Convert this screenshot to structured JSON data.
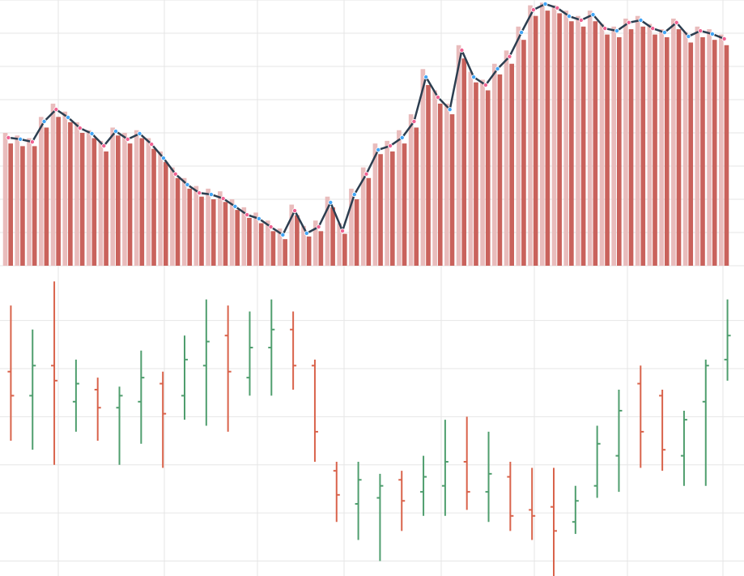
{
  "chart_data": [
    {
      "type": "combo",
      "ylim": [
        0,
        100
      ],
      "yticks": [
        0,
        12.5,
        25,
        37.5,
        50,
        62.5,
        75,
        87.5,
        100
      ],
      "grid": true,
      "marker_colors": [
        "#f06292",
        "#42a5f5"
      ],
      "series": [
        {
          "type": "bar",
          "color": "#e9bcbc",
          "values": [
            50,
            49,
            48,
            56,
            61,
            58,
            54,
            51,
            47,
            52,
            50,
            51,
            48,
            43,
            37,
            33,
            30,
            29,
            28,
            25,
            22,
            20,
            17,
            14,
            23,
            15,
            17,
            26,
            16,
            29,
            37,
            46,
            47,
            51,
            57,
            74,
            66,
            61,
            83,
            73,
            70,
            76,
            81,
            90,
            98,
            99,
            98,
            96,
            94,
            96,
            91,
            90,
            93,
            94,
            91,
            89,
            93,
            88,
            90,
            89,
            87
          ]
        },
        {
          "type": "bar",
          "color": "#c9625c",
          "values": [
            46,
            45,
            45,
            52,
            56,
            54,
            50,
            48,
            43,
            49,
            46,
            48,
            44,
            39,
            33,
            29,
            26,
            25,
            24,
            21,
            18,
            16,
            13,
            10,
            19,
            11,
            13,
            22,
            12,
            25,
            33,
            42,
            43,
            46,
            52,
            68,
            61,
            57,
            78,
            69,
            66,
            72,
            76,
            85,
            94,
            96,
            95,
            92,
            90,
            92,
            87,
            86,
            89,
            90,
            87,
            86,
            89,
            84,
            86,
            85,
            83
          ]
        },
        {
          "type": "line",
          "color": "#2c3e50",
          "values": [
            48.2,
            47.6,
            46.6,
            54.3,
            58.8,
            55.8,
            51.8,
            49.7,
            45.1,
            50.6,
            47.6,
            49.7,
            45.7,
            40.5,
            34.5,
            30.5,
            27.4,
            26.8,
            25.3,
            22.3,
            19.2,
            17.7,
            14.6,
            11.6,
            20.7,
            12.2,
            14.6,
            23.8,
            13.1,
            26.8,
            34.5,
            43.6,
            45.1,
            48.2,
            54.3,
            71,
            63.4,
            58.8,
            81.1,
            71,
            68,
            74.1,
            78.7,
            87.8,
            96.3,
            98.5,
            97,
            93.9,
            92.4,
            94.5,
            89.3,
            88.4,
            91.5,
            92.4,
            89.3,
            87.8,
            91.5,
            86.3,
            88.4,
            87.2,
            85.4
          ]
        }
      ]
    },
    {
      "type": "ohlc",
      "ylim": [
        0,
        100
      ],
      "yticks": [
        5,
        21,
        37,
        53,
        69,
        85
      ],
      "grid": true,
      "up_color": "#4f9e6e",
      "down_color": "#d9634b",
      "open": [
        68,
        60,
        70,
        58,
        62,
        56,
        58,
        64,
        60,
        70,
        80,
        66,
        76,
        82,
        70,
        35,
        24,
        26,
        32,
        28,
        30,
        38,
        28,
        33,
        22,
        23,
        18,
        30,
        40,
        64,
        60,
        40,
        58,
        72
      ],
      "high": [
        90,
        82,
        98,
        72,
        66,
        63,
        75,
        68,
        80,
        92,
        90,
        88,
        92,
        88,
        72,
        38,
        38,
        34,
        35,
        40,
        52,
        53,
        48,
        38,
        36,
        36,
        30,
        50,
        62,
        70,
        62,
        55,
        72,
        92
      ],
      "low": [
        45,
        42,
        37,
        48,
        45,
        37,
        44,
        36,
        52,
        50,
        48,
        60,
        60,
        62,
        38,
        18,
        12,
        5,
        15,
        20,
        20,
        22,
        18,
        15,
        12,
        0,
        14,
        26,
        28,
        36,
        35,
        30,
        30,
        65
      ],
      "close": [
        60,
        70,
        65,
        64,
        56,
        60,
        66,
        54,
        72,
        78,
        68,
        76,
        82,
        70,
        48,
        27,
        32,
        30,
        25,
        33,
        38,
        28,
        34,
        20,
        20,
        15,
        25,
        44,
        55,
        48,
        42,
        52,
        70,
        80
      ]
    }
  ]
}
